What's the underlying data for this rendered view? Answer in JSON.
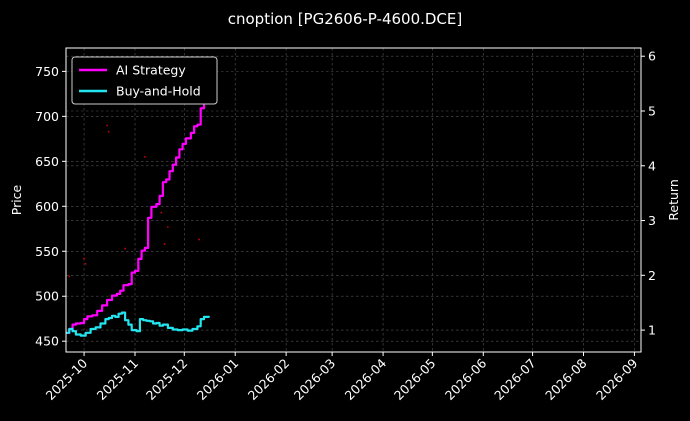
{
  "chart_data": {
    "type": "line",
    "title": "cnoption [PG2606-P-4600.DCE]",
    "xlabel": "",
    "ylabel": "Price",
    "y2label": "Return",
    "x_range": [
      "2025-09-20",
      "2026-09-05"
    ],
    "ylim": [
      438,
      776
    ],
    "y2lim": [
      0.6,
      6.15
    ],
    "x_ticks": [
      "2025-10",
      "2025-11",
      "2025-12",
      "2026-01",
      "2026-02",
      "2026-03",
      "2026-04",
      "2026-05",
      "2026-06",
      "2026-07",
      "2026-08",
      "2026-09"
    ],
    "y_ticks": [
      450,
      500,
      550,
      600,
      650,
      700,
      750
    ],
    "y2_ticks": [
      1,
      2,
      3,
      4,
      5,
      6
    ],
    "grid": true,
    "legend_position": "upper-left",
    "series": [
      {
        "name": "AI Strategy",
        "axis": "right",
        "color": "#ff00ff",
        "points": [
          [
            "2025-09-20",
            0.95
          ],
          [
            "2025-09-22",
            1.02
          ],
          [
            "2025-09-24",
            1.1
          ],
          [
            "2025-09-26",
            1.12
          ],
          [
            "2025-09-29",
            1.13
          ],
          [
            "2025-10-01",
            1.2
          ],
          [
            "2025-10-03",
            1.25
          ],
          [
            "2025-10-06",
            1.27
          ],
          [
            "2025-10-09",
            1.35
          ],
          [
            "2025-10-12",
            1.45
          ],
          [
            "2025-10-15",
            1.55
          ],
          [
            "2025-10-18",
            1.63
          ],
          [
            "2025-10-21",
            1.66
          ],
          [
            "2025-10-23",
            1.72
          ],
          [
            "2025-10-25",
            1.82
          ],
          [
            "2025-10-28",
            1.84
          ],
          [
            "2025-10-30",
            2.05
          ],
          [
            "2025-11-01",
            2.08
          ],
          [
            "2025-11-03",
            2.3
          ],
          [
            "2025-11-05",
            2.45
          ],
          [
            "2025-11-07",
            2.5
          ],
          [
            "2025-11-09",
            3.05
          ],
          [
            "2025-11-11",
            3.25
          ],
          [
            "2025-11-14",
            3.3
          ],
          [
            "2025-11-16",
            3.45
          ],
          [
            "2025-11-18",
            3.7
          ],
          [
            "2025-11-20",
            3.75
          ],
          [
            "2025-11-22",
            3.9
          ],
          [
            "2025-11-24",
            4.02
          ],
          [
            "2025-11-26",
            4.15
          ],
          [
            "2025-11-28",
            4.3
          ],
          [
            "2025-11-30",
            4.4
          ],
          [
            "2025-12-02",
            4.5
          ],
          [
            "2025-12-05",
            4.6
          ],
          [
            "2025-12-07",
            4.72
          ],
          [
            "2025-12-09",
            4.75
          ],
          [
            "2025-12-11",
            5.05
          ],
          [
            "2025-12-13",
            5.45
          ],
          [
            "2025-12-15",
            5.88
          ],
          [
            "2025-12-17",
            5.87
          ]
        ]
      },
      {
        "name": "Buy-and-Hold",
        "axis": "right",
        "color": "#22e5f0",
        "points": [
          [
            "2025-09-20",
            0.95
          ],
          [
            "2025-09-22",
            1.02
          ],
          [
            "2025-09-24",
            0.98
          ],
          [
            "2025-09-26",
            0.92
          ],
          [
            "2025-09-29",
            0.9
          ],
          [
            "2025-10-02",
            0.95
          ],
          [
            "2025-10-05",
            1.02
          ],
          [
            "2025-10-08",
            1.05
          ],
          [
            "2025-10-11",
            1.12
          ],
          [
            "2025-10-14",
            1.2
          ],
          [
            "2025-10-16",
            1.22
          ],
          [
            "2025-10-18",
            1.26
          ],
          [
            "2025-10-20",
            1.24
          ],
          [
            "2025-10-22",
            1.3
          ],
          [
            "2025-10-24",
            1.32
          ],
          [
            "2025-10-26",
            1.18
          ],
          [
            "2025-10-28",
            1.1
          ],
          [
            "2025-10-30",
            1.0
          ],
          [
            "2025-11-02",
            0.98
          ],
          [
            "2025-11-04",
            1.2
          ],
          [
            "2025-11-06",
            1.18
          ],
          [
            "2025-11-08",
            1.17
          ],
          [
            "2025-11-10",
            1.16
          ],
          [
            "2025-11-12",
            1.12
          ],
          [
            "2025-11-14",
            1.13
          ],
          [
            "2025-11-16",
            1.08
          ],
          [
            "2025-11-18",
            1.1
          ],
          [
            "2025-11-21",
            1.04
          ],
          [
            "2025-11-24",
            1.01
          ],
          [
            "2025-11-27",
            1.0
          ],
          [
            "2025-11-30",
            1.01
          ],
          [
            "2025-12-03",
            0.99
          ],
          [
            "2025-12-06",
            1.02
          ],
          [
            "2025-12-09",
            1.07
          ],
          [
            "2025-12-11",
            1.2
          ],
          [
            "2025-12-13",
            1.24
          ],
          [
            "2025-12-16",
            1.23
          ]
        ]
      }
    ],
    "scatter": {
      "axis": "left",
      "color": "#cc0000",
      "points": [
        [
          "2025-09-22",
          522
        ],
        [
          "2025-10-01",
          542
        ],
        [
          "2025-10-02",
          536
        ],
        [
          "2025-10-15",
          690
        ],
        [
          "2025-10-16",
          683
        ],
        [
          "2025-10-26",
          553
        ],
        [
          "2025-11-07",
          655
        ],
        [
          "2025-11-17",
          593
        ],
        [
          "2025-11-19",
          558
        ],
        [
          "2025-11-21",
          577
        ],
        [
          "2025-12-10",
          563
        ]
      ]
    }
  }
}
